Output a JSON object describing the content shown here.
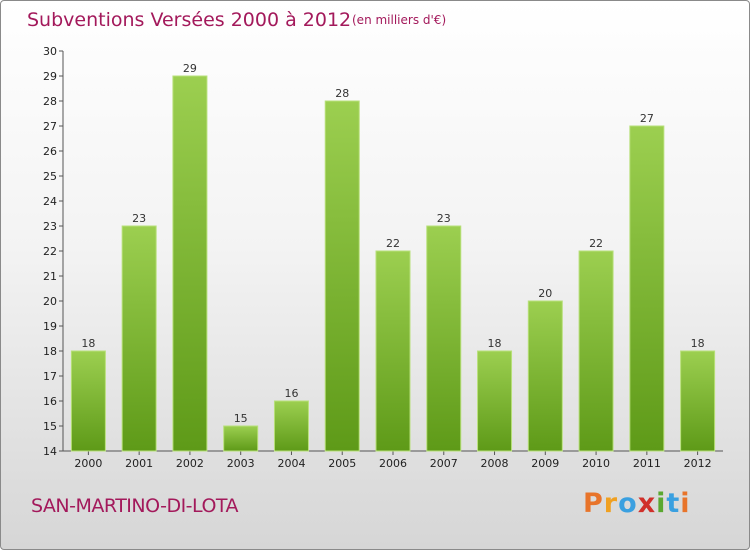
{
  "title": "Subventions Versées 2000 à 2012",
  "subtitle": "(en milliers d'€)",
  "commune": "SAN-MARTINO-DI-LOTA",
  "logo": {
    "text": "Proxiti",
    "letters": [
      {
        "ch": "P",
        "color": "#e8742a"
      },
      {
        "ch": "r",
        "color": "#f0a020"
      },
      {
        "ch": "o",
        "color": "#3aa0e0"
      },
      {
        "ch": "x",
        "color": "#d0302a"
      },
      {
        "ch": "i",
        "color": "#5aa830"
      },
      {
        "ch": "t",
        "color": "#3aa0e0"
      },
      {
        "ch": "i",
        "color": "#e8742a"
      }
    ]
  },
  "colors": {
    "title": "#a3195b",
    "bar_top": "#9ccf50",
    "bar_bottom": "#5e9a18"
  },
  "chart_data": {
    "type": "bar",
    "categories": [
      "2000",
      "2001",
      "2002",
      "2003",
      "2004",
      "2005",
      "2006",
      "2007",
      "2008",
      "2009",
      "2010",
      "2011",
      "2012"
    ],
    "values": [
      18,
      23,
      29,
      15,
      16,
      28,
      22,
      23,
      18,
      20,
      22,
      27,
      18
    ],
    "title": "Subventions Versées 2000 à 2012",
    "subtitle": "(en milliers d'€)",
    "ylim": [
      14,
      30
    ],
    "yticks": [
      14,
      15,
      16,
      17,
      18,
      19,
      20,
      21,
      22,
      23,
      24,
      25,
      26,
      27,
      28,
      29,
      30
    ],
    "grid": false,
    "legend": "none"
  }
}
